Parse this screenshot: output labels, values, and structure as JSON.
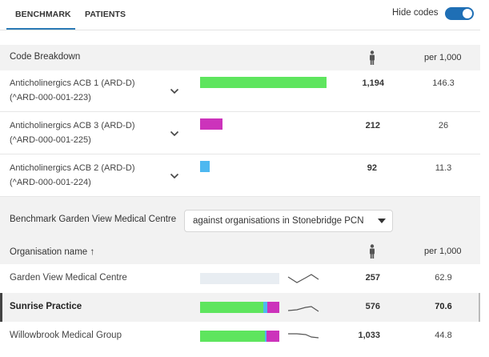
{
  "tabs": {
    "benchmark": "BENCHMARK",
    "patients": "PATIENTS"
  },
  "hide_codes": {
    "label": "Hide codes",
    "on": true
  },
  "colors": {
    "green": "#5ee55e",
    "magenta": "#cc33bb",
    "blue": "#4db8f0",
    "grey": "#e8edf2",
    "accent": "#1f6fb5"
  },
  "code_breakdown": {
    "title": "Code Breakdown",
    "per_label": "per 1,000",
    "rows": [
      {
        "name": "Anticholinergics ACB 1 (ARD-D)",
        "code": "(^ARD-000-001-223)",
        "count": "1,194",
        "per1000": "146.3",
        "value": 1194,
        "color": "#5ee55e"
      },
      {
        "name": "Anticholinergics ACB 3 (ARD-D)",
        "code": "(^ARD-000-001-225)",
        "count": "212",
        "per1000": "26",
        "value": 212,
        "color": "#cc33bb"
      },
      {
        "name": "Anticholinergics ACB 2 (ARD-D)",
        "code": "(^ARD-000-001-224)",
        "count": "92",
        "per1000": "11.3",
        "value": 92,
        "color": "#4db8f0"
      }
    ]
  },
  "benchmark": {
    "label": "Benchmark Garden View Medical Centre",
    "select_value": "against organisations in Stonebridge PCN"
  },
  "organisations": {
    "header": "Organisation name",
    "sort_arrow": "↑",
    "per_label": "per 1,000",
    "rows": [
      {
        "name": "Garden View Medical Centre",
        "count": "257",
        "per1000": "62.9",
        "selected": false,
        "segments": []
      },
      {
        "name": "Sunrise Practice",
        "count": "576",
        "per1000": "70.6",
        "selected": true,
        "segments": [
          0.8,
          0.05,
          0.15
        ]
      },
      {
        "name": "Willowbrook Medical Group",
        "count": "1,033",
        "per1000": "44.8",
        "selected": false,
        "segments": [
          0.82,
          0.02,
          0.16
        ]
      }
    ]
  }
}
